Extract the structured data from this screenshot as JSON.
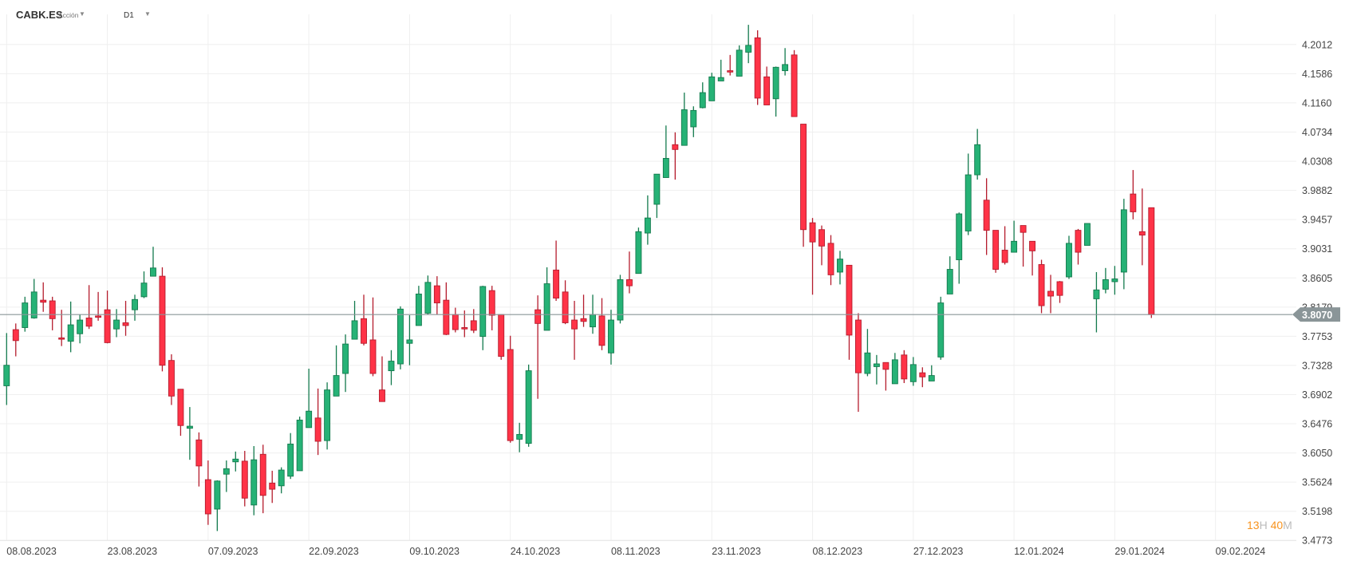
{
  "header": {
    "symbol": "CABK.ES",
    "instrument_type": "Acción",
    "timeframe": "D1"
  },
  "timer": {
    "hours": "13",
    "hours_unit": "H",
    "minutes": "40",
    "minutes_unit": "M"
  },
  "colors": {
    "up": "#26b276",
    "up_border": "#137a4d",
    "down": "#ff3347",
    "down_border": "#b51c2d",
    "grid": "#efefef",
    "price_line": "#8a9598"
  },
  "chart_data": {
    "type": "candlestick",
    "title": "CABK.ES D1",
    "current_price": 3.807,
    "current_price_label": "3.8070",
    "ylim": [
      3.4773,
      4.2012
    ],
    "y_ticks": [
      "4.2012",
      "4.1586",
      "4.1160",
      "4.0734",
      "4.0308",
      "3.9882",
      "3.9457",
      "3.9031",
      "3.8605",
      "3.8179",
      "3.7753",
      "3.7328",
      "3.6902",
      "3.6476",
      "3.6050",
      "3.5624",
      "3.5198",
      "3.4773"
    ],
    "x_ticks": [
      "08.08.2023",
      "23.08.2023",
      "07.09.2023",
      "22.09.2023",
      "09.10.2023",
      "24.10.2023",
      "08.11.2023",
      "23.11.2023",
      "08.12.2023",
      "27.12.2023",
      "12.01.2024",
      "29.01.2024",
      "09.02.2024"
    ],
    "x_tick_every_candles": 11,
    "ohlc_fields": [
      "open",
      "high",
      "low",
      "close"
    ],
    "ohlc": [
      [
        3.703,
        3.78,
        3.675,
        3.733
      ],
      [
        3.785,
        3.794,
        3.746,
        3.769
      ],
      [
        3.788,
        3.833,
        3.782,
        3.824
      ],
      [
        3.802,
        3.859,
        3.801,
        3.84
      ],
      [
        3.828,
        3.854,
        3.811,
        3.825
      ],
      [
        3.827,
        3.833,
        3.784,
        3.801
      ],
      [
        3.773,
        3.814,
        3.761,
        3.771
      ],
      [
        3.768,
        3.826,
        3.752,
        3.792
      ],
      [
        3.779,
        3.807,
        3.765,
        3.799
      ],
      [
        3.802,
        3.85,
        3.786,
        3.79
      ],
      [
        3.805,
        3.84,
        3.798,
        3.803
      ],
      [
        3.814,
        3.842,
        3.765,
        3.766
      ],
      [
        3.786,
        3.815,
        3.774,
        3.799
      ],
      [
        3.795,
        3.827,
        3.776,
        3.791
      ],
      [
        3.814,
        3.836,
        3.798,
        3.829
      ],
      [
        3.833,
        3.87,
        3.831,
        3.853
      ],
      [
        3.863,
        3.906,
        3.863,
        3.875
      ],
      [
        3.863,
        3.876,
        3.724,
        3.733
      ],
      [
        3.74,
        3.749,
        3.675,
        3.688
      ],
      [
        3.698,
        3.698,
        3.63,
        3.645
      ],
      [
        3.641,
        3.672,
        3.595,
        3.644
      ],
      [
        3.624,
        3.635,
        3.556,
        3.586
      ],
      [
        3.566,
        3.594,
        3.5,
        3.516
      ],
      [
        3.523,
        3.565,
        3.491,
        3.564
      ],
      [
        3.574,
        3.594,
        3.548,
        3.582
      ],
      [
        3.592,
        3.607,
        3.578,
        3.596
      ],
      [
        3.593,
        3.608,
        3.527,
        3.539
      ],
      [
        3.529,
        3.615,
        3.514,
        3.595
      ],
      [
        3.603,
        3.617,
        3.517,
        3.543
      ],
      [
        3.561,
        3.579,
        3.532,
        3.552
      ],
      [
        3.557,
        3.584,
        3.546,
        3.58
      ],
      [
        3.571,
        3.634,
        3.567,
        3.618
      ],
      [
        3.579,
        3.658,
        3.579,
        3.653
      ],
      [
        3.642,
        3.728,
        3.642,
        3.666
      ],
      [
        3.656,
        3.699,
        3.602,
        3.622
      ],
      [
        3.623,
        3.708,
        3.61,
        3.697
      ],
      [
        3.688,
        3.762,
        3.688,
        3.718
      ],
      [
        3.721,
        3.778,
        3.694,
        3.764
      ],
      [
        3.771,
        3.827,
        3.771,
        3.798
      ],
      [
        3.801,
        3.836,
        3.762,
        3.765
      ],
      [
        3.77,
        3.832,
        3.717,
        3.721
      ],
      [
        3.697,
        3.746,
        3.68,
        3.68
      ],
      [
        3.725,
        3.755,
        3.704,
        3.739
      ],
      [
        3.735,
        3.819,
        3.727,
        3.815
      ],
      [
        3.765,
        3.806,
        3.733,
        3.77
      ],
      [
        3.791,
        3.849,
        3.791,
        3.837
      ],
      [
        3.809,
        3.864,
        3.807,
        3.854
      ],
      [
        3.849,
        3.863,
        3.807,
        3.824
      ],
      [
        3.828,
        3.854,
        3.777,
        3.778
      ],
      [
        3.807,
        3.817,
        3.781,
        3.785
      ],
      [
        3.788,
        3.813,
        3.774,
        3.786
      ],
      [
        3.798,
        3.815,
        3.78,
        3.784
      ],
      [
        3.775,
        3.849,
        3.755,
        3.848
      ],
      [
        3.842,
        3.849,
        3.784,
        3.806
      ],
      [
        3.807,
        3.807,
        3.741,
        3.746
      ],
      [
        3.756,
        3.776,
        3.62,
        3.623
      ],
      [
        3.625,
        3.649,
        3.606,
        3.632
      ],
      [
        3.619,
        3.734,
        3.614,
        3.725
      ],
      [
        3.814,
        3.835,
        3.684,
        3.794
      ],
      [
        3.784,
        3.876,
        3.784,
        3.852
      ],
      [
        3.872,
        3.915,
        3.827,
        3.831
      ],
      [
        3.84,
        3.857,
        3.793,
        3.795
      ],
      [
        3.799,
        3.827,
        3.741,
        3.786
      ],
      [
        3.801,
        3.836,
        3.789,
        3.797
      ],
      [
        3.789,
        3.836,
        3.779,
        3.807
      ],
      [
        3.805,
        3.831,
        3.755,
        3.762
      ],
      [
        3.751,
        3.814,
        3.734,
        3.799
      ],
      [
        3.799,
        3.865,
        3.794,
        3.858
      ],
      [
        3.858,
        3.899,
        3.838,
        3.849
      ],
      [
        3.867,
        3.934,
        3.867,
        3.928
      ],
      [
        3.926,
        3.981,
        3.909,
        3.948
      ],
      [
        3.968,
        4.012,
        3.948,
        4.012
      ],
      [
        4.007,
        4.083,
        4.007,
        4.035
      ],
      [
        4.055,
        4.073,
        4.004,
        4.048
      ],
      [
        4.054,
        4.131,
        4.054,
        4.106
      ],
      [
        4.081,
        4.111,
        4.066,
        4.105
      ],
      [
        4.109,
        4.146,
        4.108,
        4.131
      ],
      [
        4.119,
        4.16,
        4.119,
        4.154
      ],
      [
        4.148,
        4.179,
        4.148,
        4.153
      ],
      [
        4.163,
        4.186,
        4.156,
        4.161
      ],
      [
        4.155,
        4.2,
        4.155,
        4.193
      ],
      [
        4.19,
        4.23,
        4.174,
        4.2
      ],
      [
        4.211,
        4.222,
        4.113,
        4.123
      ],
      [
        4.154,
        4.169,
        4.113,
        4.113
      ],
      [
        4.122,
        4.169,
        4.096,
        4.168
      ],
      [
        4.163,
        4.196,
        4.156,
        4.172
      ],
      [
        4.186,
        4.193,
        4.096,
        4.096
      ],
      [
        4.085,
        4.085,
        3.906,
        3.931
      ],
      [
        3.941,
        3.948,
        3.836,
        3.913
      ],
      [
        3.931,
        3.937,
        3.879,
        3.907
      ],
      [
        3.911,
        3.923,
        3.85,
        3.865
      ],
      [
        3.869,
        3.9,
        3.851,
        3.888
      ],
      [
        3.879,
        3.879,
        3.741,
        3.777
      ],
      [
        3.799,
        3.809,
        3.665,
        3.722
      ],
      [
        3.721,
        3.786,
        3.717,
        3.751
      ],
      [
        3.731,
        3.748,
        3.705,
        3.735
      ],
      [
        3.737,
        3.737,
        3.696,
        3.727
      ],
      [
        3.706,
        3.751,
        3.706,
        3.741
      ],
      [
        3.748,
        3.755,
        3.707,
        3.713
      ],
      [
        3.709,
        3.745,
        3.703,
        3.734
      ],
      [
        3.722,
        3.73,
        3.701,
        3.716
      ],
      [
        3.71,
        3.733,
        3.71,
        3.718
      ],
      [
        3.745,
        3.833,
        3.741,
        3.824
      ],
      [
        3.837,
        3.892,
        3.837,
        3.873
      ],
      [
        3.887,
        3.956,
        3.852,
        3.954
      ],
      [
        3.929,
        4.042,
        3.923,
        4.011
      ],
      [
        4.011,
        4.078,
        4.004,
        4.055
      ],
      [
        3.974,
        4.006,
        3.894,
        3.93
      ],
      [
        3.93,
        3.93,
        3.868,
        3.873
      ],
      [
        3.901,
        3.936,
        3.88,
        3.883
      ],
      [
        3.898,
        3.944,
        3.898,
        3.914
      ],
      [
        3.937,
        3.937,
        3.877,
        3.927
      ],
      [
        3.914,
        3.914,
        3.864,
        3.9
      ],
      [
        3.88,
        3.887,
        3.809,
        3.82
      ],
      [
        3.841,
        3.865,
        3.809,
        3.834
      ],
      [
        3.855,
        3.856,
        3.824,
        3.835
      ],
      [
        3.862,
        3.922,
        3.859,
        3.911
      ],
      [
        3.93,
        3.932,
        3.88,
        3.898
      ],
      [
        3.908,
        3.94,
        3.908,
        3.94
      ],
      [
        3.83,
        3.869,
        3.781,
        3.843
      ],
      [
        3.844,
        3.875,
        3.838,
        3.858
      ],
      [
        3.855,
        3.878,
        3.836,
        3.859
      ],
      [
        3.869,
        3.976,
        3.844,
        3.96
      ],
      [
        3.983,
        4.018,
        3.946,
        3.957
      ],
      [
        3.928,
        3.991,
        3.879,
        3.923
      ],
      [
        3.963,
        3.963,
        3.802,
        3.807
      ]
    ]
  }
}
